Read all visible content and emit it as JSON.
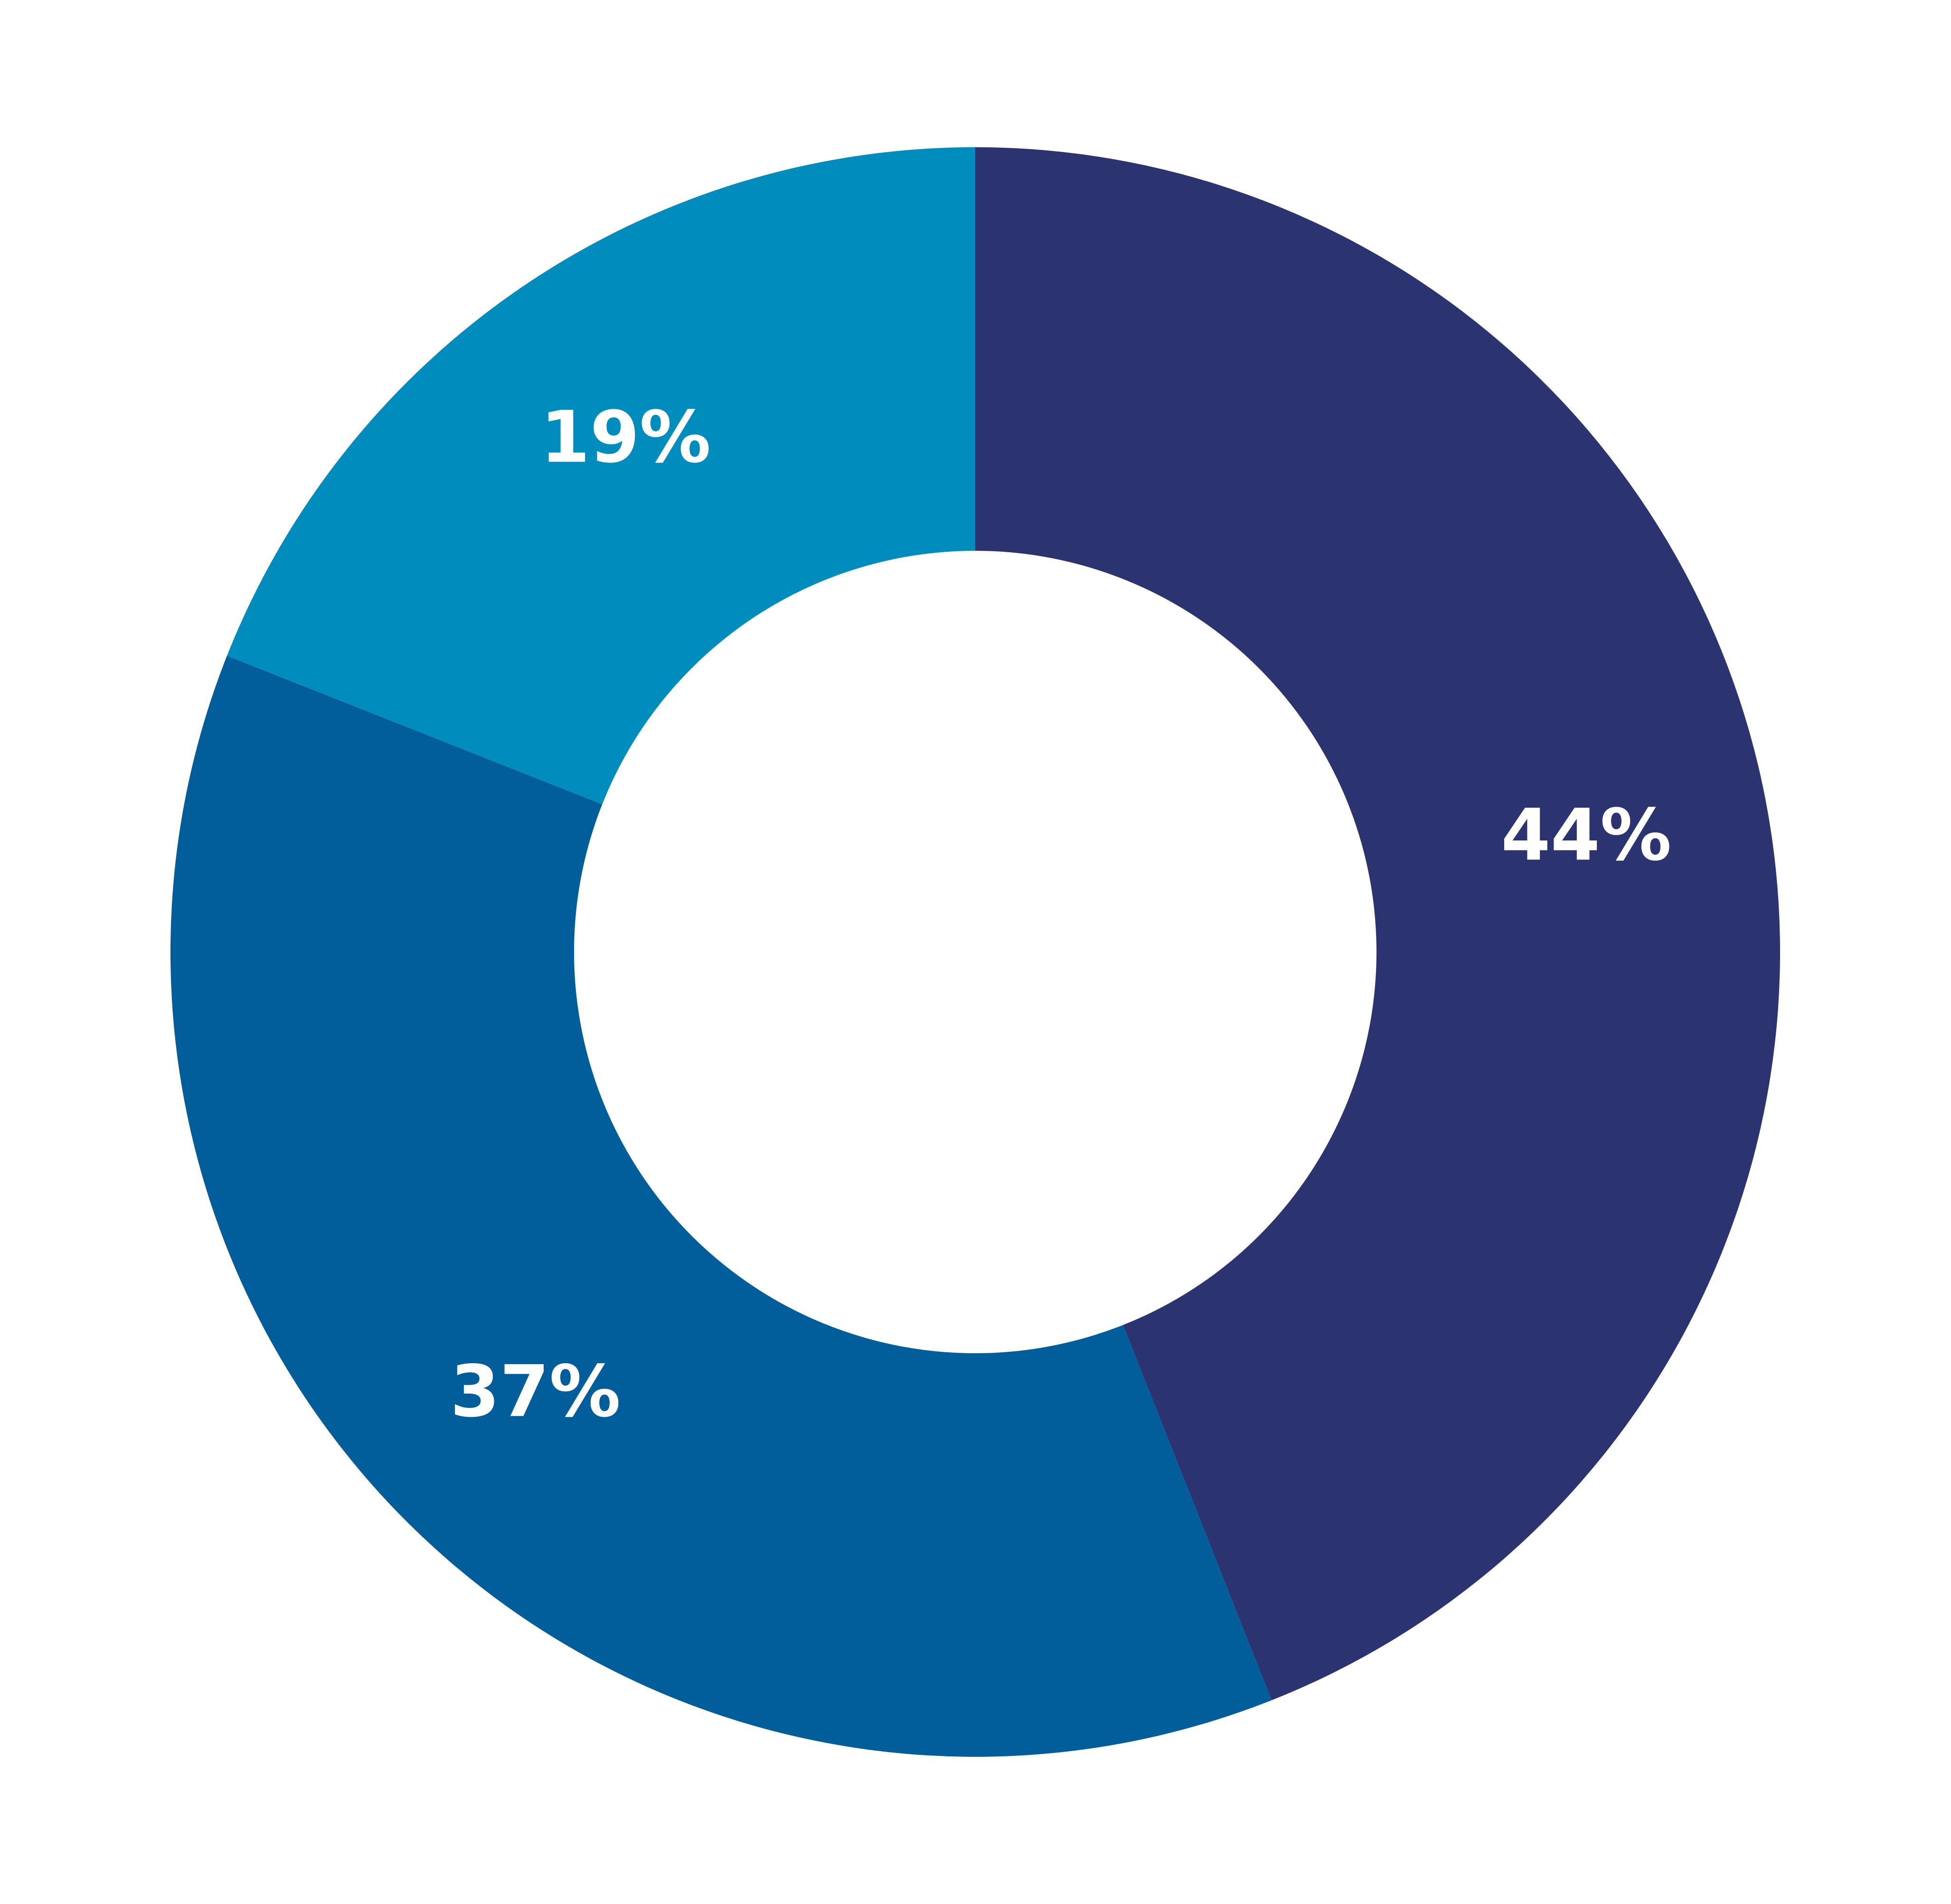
{
  "chart_data": {
    "type": "pie",
    "donut": true,
    "legend": "none",
    "slices": [
      {
        "label": "44%",
        "value": 44,
        "color": "#2b3370"
      },
      {
        "label": "37%",
        "value": 37,
        "color": "#025e9a"
      },
      {
        "label": "19%",
        "value": 19,
        "color": "#018cbe"
      }
    ]
  }
}
